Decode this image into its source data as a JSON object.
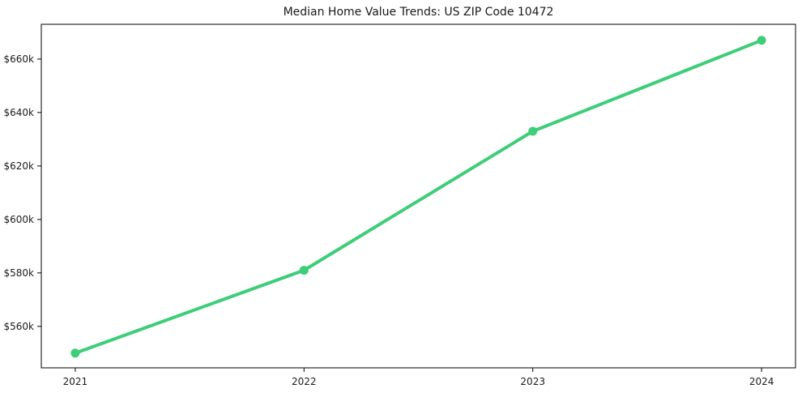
{
  "chart_data": {
    "type": "line",
    "title": "Median Home Value Trends: US ZIP Code 10472",
    "x": [
      "2021",
      "2022",
      "2023",
      "2024"
    ],
    "series": [
      {
        "name": "Median Home Value",
        "values": [
          550000,
          581000,
          633000,
          667000
        ],
        "color": "#3ecd78",
        "line_width": 4,
        "marker": "circle",
        "marker_radius": 5.5
      }
    ],
    "xlabel": "",
    "ylabel": "",
    "y_ticks": [
      {
        "value": 560000,
        "label": "$560k"
      },
      {
        "value": 580000,
        "label": "$580k"
      },
      {
        "value": 600000,
        "label": "$600k"
      },
      {
        "value": 620000,
        "label": "$620k"
      },
      {
        "value": 640000,
        "label": "$640k"
      },
      {
        "value": 660000,
        "label": "$660k"
      }
    ],
    "ylim": [
      544500,
      673000
    ],
    "grid": false,
    "legend": false,
    "background": "#ffffff",
    "axis_color": "#000000",
    "text_color": "#1a1a1a"
  }
}
